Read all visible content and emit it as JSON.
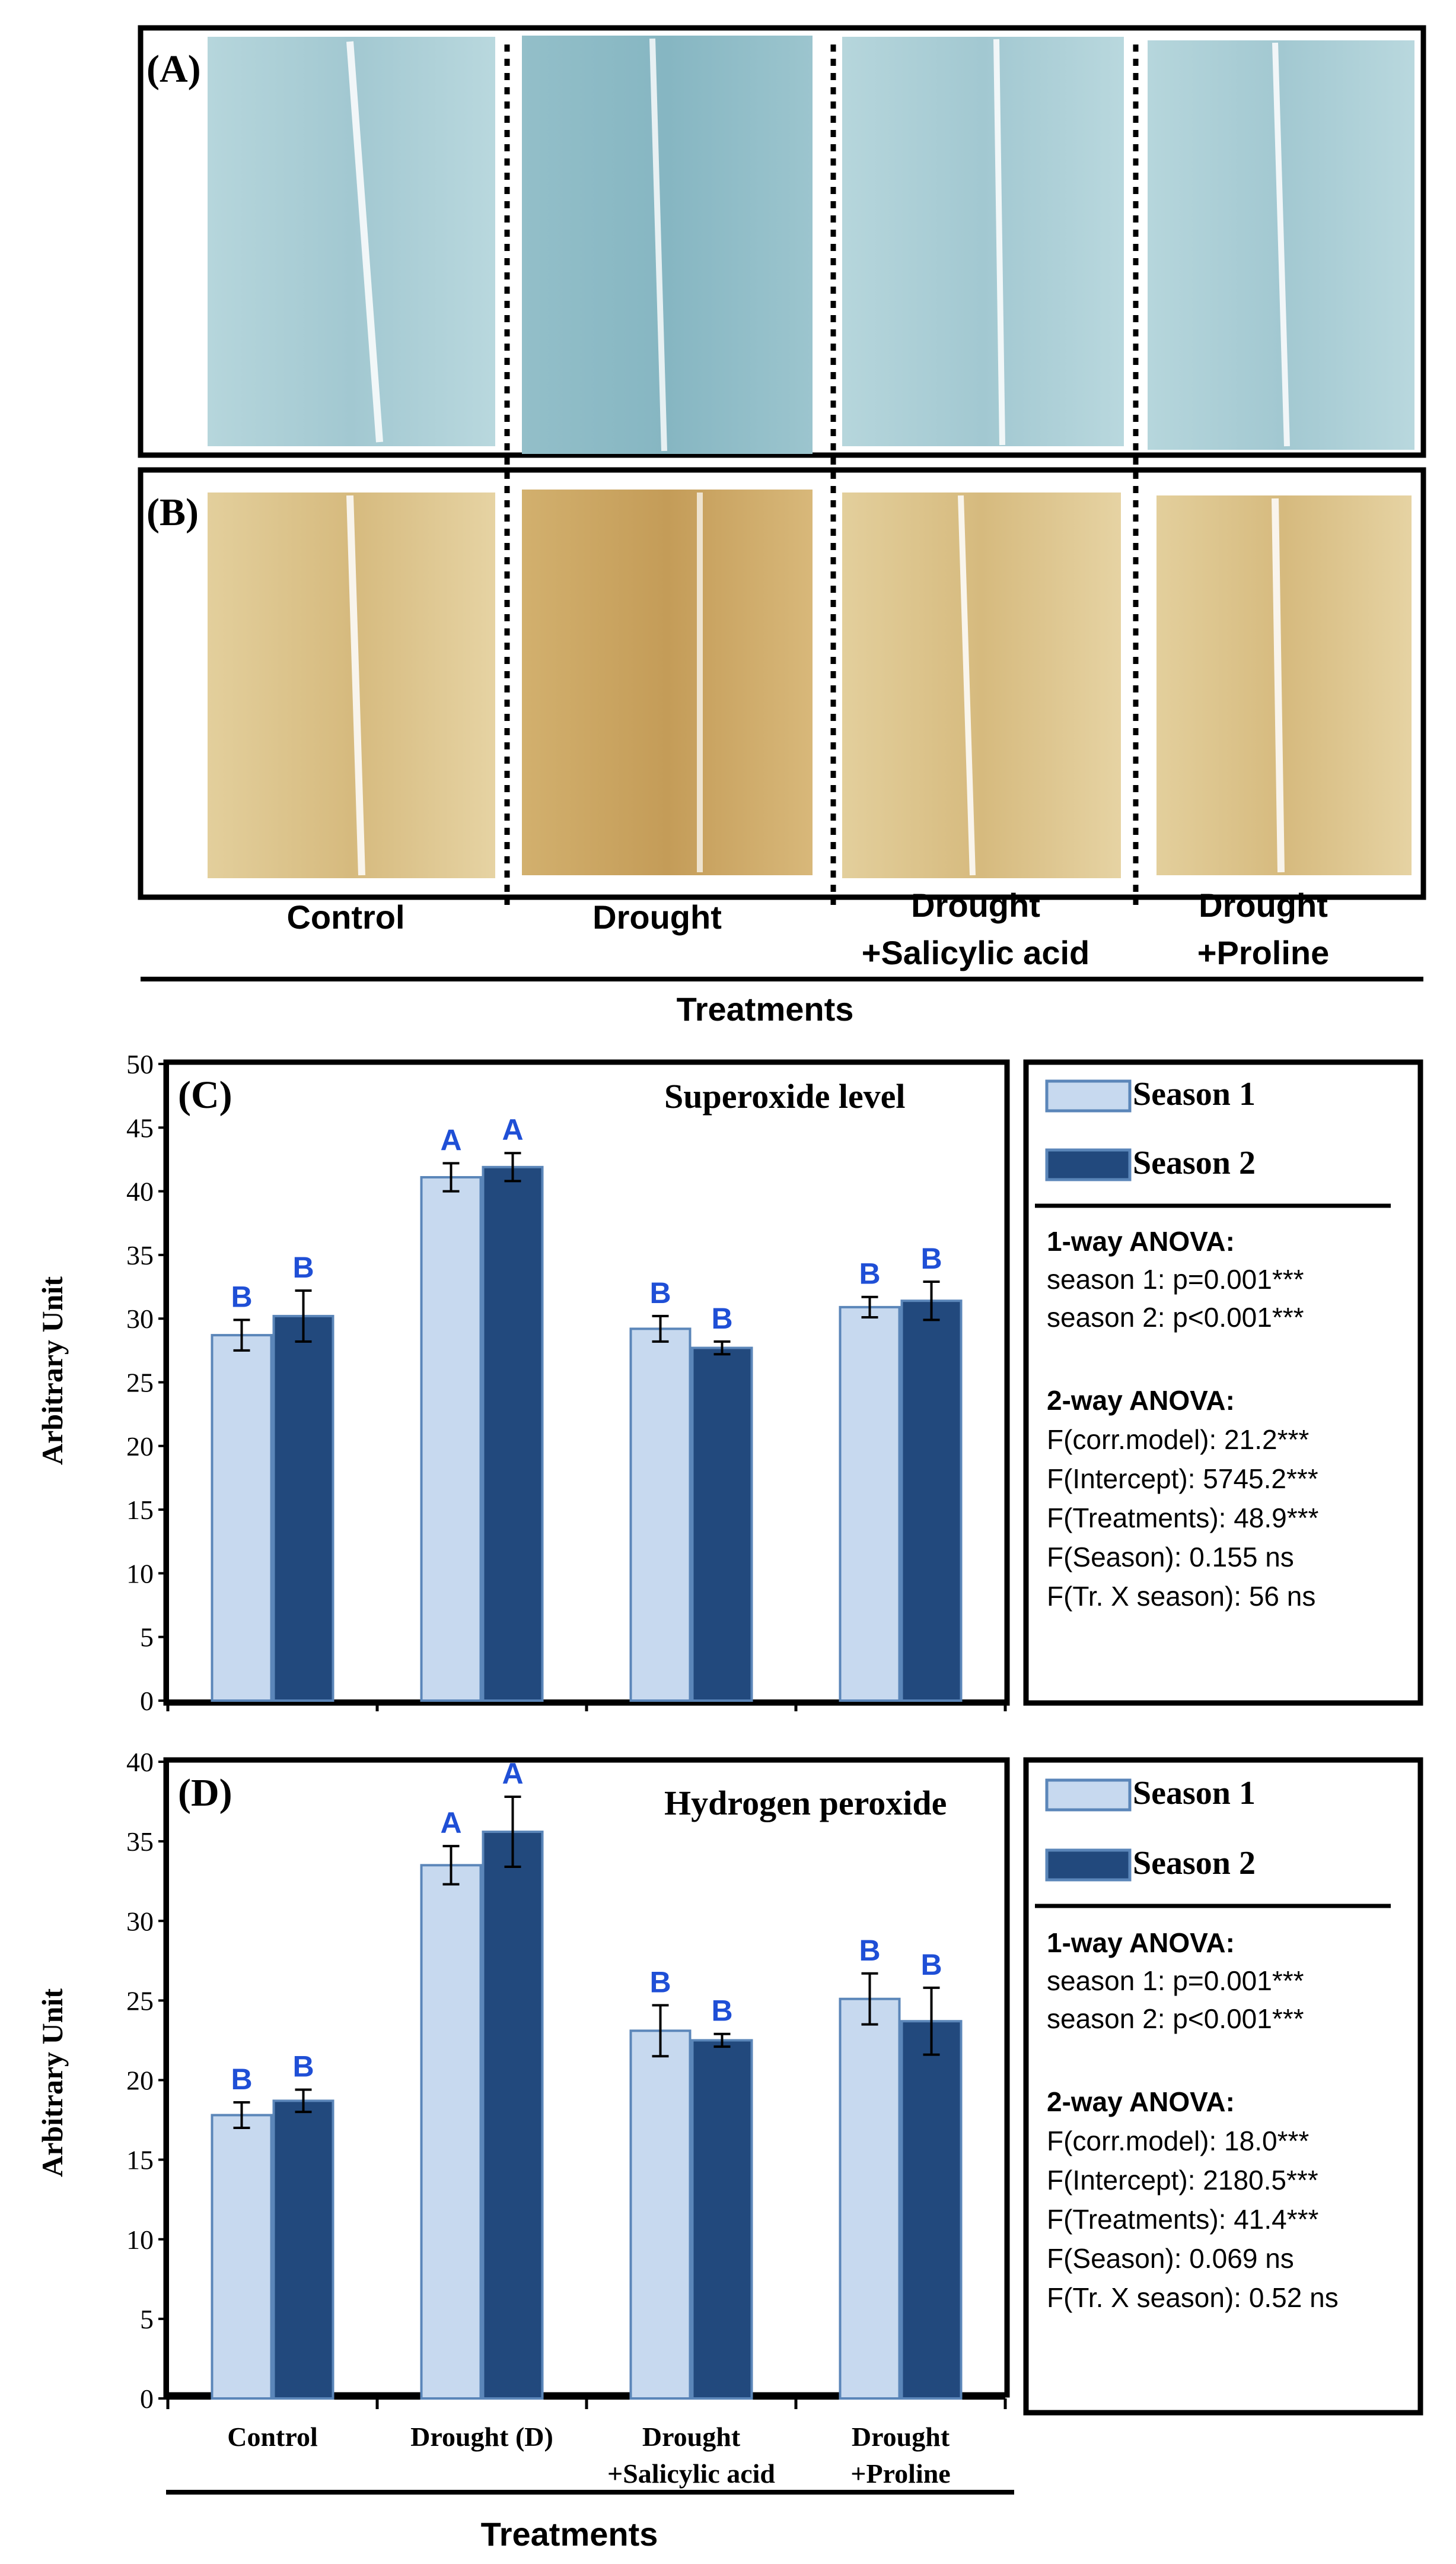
{
  "panels": {
    "a": {
      "label": "(A)"
    },
    "b": {
      "label": "(B)"
    }
  },
  "leaf_treatments": [
    "Control",
    "Drought",
    "Drought",
    "+Salicylic acid",
    "Drought",
    "+Proline"
  ],
  "treatments_axis_label": "Treatments",
  "legend": {
    "season1": "Season 1",
    "season2": "Season 2"
  },
  "colors": {
    "season1": "#c7d9ef",
    "season2": "#22497d",
    "bar_edge": "#5b86b9",
    "letters": "#1f4fd6",
    "stain_blue": "#a9cfd6",
    "stain_brown": "#dcc28a"
  },
  "stats_c": {
    "heading1": "1-way ANOVA:",
    "line1a": "season 1: p=0.001***",
    "line1b": "season 2: p<0.001***",
    "heading2": "2-way ANOVA:",
    "lines": [
      "F(corr.model): 21.2***",
      "F(Intercept): 5745.2***",
      "F(Treatments): 48.9***",
      "F(Season):  0.155 ns",
      "F(Tr. X  season): 56 ns"
    ]
  },
  "stats_d": {
    "heading1": "1-way ANOVA:",
    "line1a": "season 1: p=0.001***",
    "line1b": "season 2: p<0.001***",
    "heading2": "2-way ANOVA:",
    "lines": [
      "F(corr.model): 18.0***",
      "F(Intercept): 2180.5***",
      "F(Treatments): 41.4***",
      "F(Season):  0.069 ns",
      "F(Tr. X  season): 0.52 ns"
    ]
  },
  "chart_data": [
    {
      "type": "bar",
      "panel_label": "(C)",
      "title": "Superoxide level",
      "ylabel": "Arbitrary Unit",
      "xlabel": "",
      "ylim": [
        0,
        50
      ],
      "yticks": [
        0,
        5,
        10,
        15,
        20,
        25,
        30,
        35,
        40,
        45,
        50
      ],
      "categories": [
        "Control",
        "Drought",
        "Drought +Salicylic acid",
        "Drought +Proline"
      ],
      "series": [
        {
          "name": "Season 1",
          "values": [
            28.7,
            41.1,
            29.2,
            30.9
          ],
          "errors": [
            1.2,
            1.1,
            1.0,
            0.8
          ],
          "letters": [
            "B",
            "A",
            "B",
            "B"
          ]
        },
        {
          "name": "Season 2",
          "values": [
            30.2,
            41.9,
            27.7,
            31.4
          ],
          "errors": [
            2.0,
            1.1,
            0.5,
            1.5
          ],
          "letters": [
            "B",
            "A",
            "B",
            "B"
          ]
        }
      ]
    },
    {
      "type": "bar",
      "panel_label": "(D)",
      "title": "Hydrogen peroxide",
      "ylabel": "Arbitrary Unit",
      "xlabel": "Treatments",
      "ylim": [
        0,
        40
      ],
      "yticks": [
        0,
        5,
        10,
        15,
        20,
        25,
        30,
        35,
        40
      ],
      "categories": [
        "Control",
        "Drought (D)",
        "Drought +Salicylic acid",
        "Drought +Proline"
      ],
      "category_lines": [
        [
          "Control"
        ],
        [
          "Drought (D)"
        ],
        [
          "Drought",
          "+Salicylic acid"
        ],
        [
          "Drought",
          "+Proline"
        ]
      ],
      "series": [
        {
          "name": "Season 1",
          "values": [
            17.8,
            33.5,
            23.1,
            25.1
          ],
          "errors": [
            0.8,
            1.2,
            1.6,
            1.6
          ],
          "letters": [
            "B",
            "A",
            "B",
            "B"
          ]
        },
        {
          "name": "Season 2",
          "values": [
            18.7,
            35.6,
            22.5,
            23.7
          ],
          "errors": [
            0.7,
            2.2,
            0.4,
            2.1
          ],
          "letters": [
            "B",
            "A",
            "B",
            "B"
          ]
        }
      ]
    }
  ]
}
